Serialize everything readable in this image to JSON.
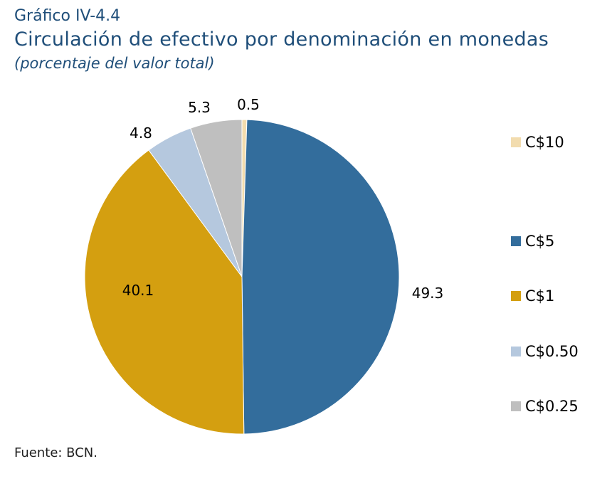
{
  "header": {
    "label": "Gráfico IV-4.4",
    "title": "Circulación de efectivo por denominación en monedas",
    "subtitle": "(porcentaje del valor total)"
  },
  "source": "Fuente: BCN.",
  "chart_data": {
    "type": "pie",
    "title": "Circulación de efectivo por denominación en monedas",
    "subtitle": "(porcentaje del valor total)",
    "unit": "porcentaje del valor total",
    "start_angle_deg": 90,
    "direction": "clockwise",
    "legend_placement": "right",
    "slices": [
      {
        "label": "C$10",
        "value": 0.5,
        "value_label": "0.5",
        "color": "#f2dcae"
      },
      {
        "label": "C$5",
        "value": 49.3,
        "value_label": "49.3",
        "color": "#336d9c"
      },
      {
        "label": "C$1",
        "value": 40.1,
        "value_label": "40.1",
        "color": "#d49f10"
      },
      {
        "label": "C$0.50",
        "value": 4.8,
        "value_label": "4.8",
        "color": "#b5c8de"
      },
      {
        "label": "C$0.25",
        "value": 5.3,
        "value_label": "5.3",
        "color": "#bfbfbf"
      }
    ]
  }
}
